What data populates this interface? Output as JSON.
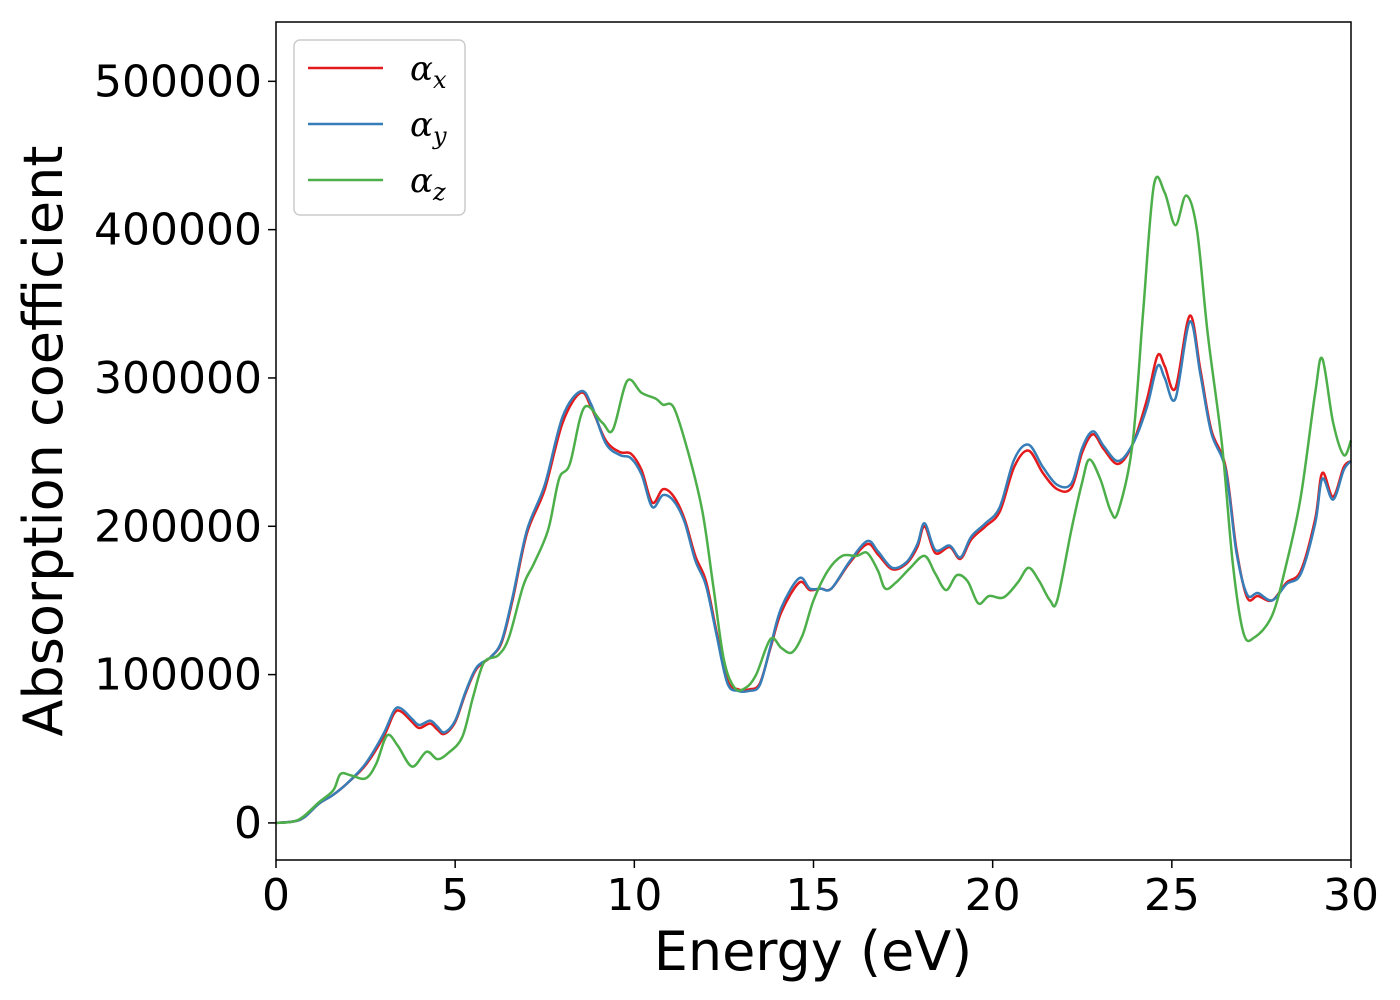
{
  "chart_data": {
    "type": "line",
    "xlabel": "Energy (eV)",
    "ylabel": "Absorption coefficient",
    "xlim": [
      0,
      30
    ],
    "ylim": [
      -25000,
      540000
    ],
    "xticks": [
      "0",
      "5",
      "10",
      "15",
      "20",
      "25",
      "30"
    ],
    "yticks": [
      "0",
      "100000",
      "200000",
      "300000",
      "400000",
      "500000"
    ],
    "grid": false,
    "legend_position": "top-left",
    "series": [
      {
        "name": "αx",
        "color": "#e41a1c",
        "points": [
          [
            0,
            0
          ],
          [
            0.5,
            1000
          ],
          [
            0.8,
            4000
          ],
          [
            1.2,
            13000
          ],
          [
            1.6,
            19000
          ],
          [
            2,
            27000
          ],
          [
            2.5,
            39000
          ],
          [
            3,
            58000
          ],
          [
            3.3,
            74000
          ],
          [
            3.5,
            75000
          ],
          [
            3.8,
            68000
          ],
          [
            4,
            64000
          ],
          [
            4.3,
            67000
          ],
          [
            4.5,
            63000
          ],
          [
            4.7,
            60000
          ],
          [
            5,
            68000
          ],
          [
            5.3,
            88000
          ],
          [
            5.6,
            104000
          ],
          [
            6,
            112000
          ],
          [
            6.3,
            122000
          ],
          [
            6.6,
            150000
          ],
          [
            7,
            195000
          ],
          [
            7.5,
            225000
          ],
          [
            8,
            270000
          ],
          [
            8.5,
            290000
          ],
          [
            8.8,
            280000
          ],
          [
            9.2,
            258000
          ],
          [
            9.6,
            250000
          ],
          [
            9.9,
            249000
          ],
          [
            10.2,
            238000
          ],
          [
            10.5,
            216000
          ],
          [
            10.8,
            225000
          ],
          [
            11.1,
            220000
          ],
          [
            11.4,
            205000
          ],
          [
            11.7,
            180000
          ],
          [
            12,
            163000
          ],
          [
            12.3,
            128000
          ],
          [
            12.6,
            96000
          ],
          [
            12.9,
            90000
          ],
          [
            13.2,
            90000
          ],
          [
            13.5,
            94000
          ],
          [
            13.8,
            118000
          ],
          [
            14.1,
            142000
          ],
          [
            14.6,
            162000
          ],
          [
            14.9,
            157000
          ],
          [
            15.2,
            158000
          ],
          [
            15.5,
            158000
          ],
          [
            16,
            175000
          ],
          [
            16.5,
            188000
          ],
          [
            16.8,
            181000
          ],
          [
            17.2,
            171000
          ],
          [
            17.6,
            175000
          ],
          [
            17.9,
            186000
          ],
          [
            18.1,
            200000
          ],
          [
            18.4,
            182000
          ],
          [
            18.8,
            186000
          ],
          [
            19.1,
            178000
          ],
          [
            19.4,
            191000
          ],
          [
            19.8,
            200000
          ],
          [
            20.2,
            210000
          ],
          [
            20.6,
            240000
          ],
          [
            21,
            251000
          ],
          [
            21.4,
            236000
          ],
          [
            21.8,
            225000
          ],
          [
            22.2,
            226000
          ],
          [
            22.5,
            250000
          ],
          [
            22.8,
            262000
          ],
          [
            23.1,
            252000
          ],
          [
            23.5,
            242000
          ],
          [
            23.9,
            255000
          ],
          [
            24.3,
            285000
          ],
          [
            24.6,
            315000
          ],
          [
            24.8,
            308000
          ],
          [
            25.1,
            293000
          ],
          [
            25.5,
            342000
          ],
          [
            25.8,
            305000
          ],
          [
            26.1,
            265000
          ],
          [
            26.5,
            240000
          ],
          [
            26.8,
            185000
          ],
          [
            27.1,
            152000
          ],
          [
            27.4,
            153000
          ],
          [
            27.8,
            150000
          ],
          [
            28.2,
            162000
          ],
          [
            28.6,
            170000
          ],
          [
            29,
            205000
          ],
          [
            29.2,
            236000
          ],
          [
            29.5,
            220000
          ],
          [
            29.8,
            240000
          ],
          [
            30,
            244000
          ]
        ]
      },
      {
        "name": "αy",
        "color": "#377eb8",
        "points": [
          [
            0,
            0
          ],
          [
            0.5,
            1000
          ],
          [
            0.8,
            4000
          ],
          [
            1.2,
            13000
          ],
          [
            1.6,
            19000
          ],
          [
            2,
            27000
          ],
          [
            2.5,
            40000
          ],
          [
            3,
            60000
          ],
          [
            3.3,
            76000
          ],
          [
            3.5,
            77000
          ],
          [
            3.8,
            70000
          ],
          [
            4,
            66000
          ],
          [
            4.3,
            69000
          ],
          [
            4.5,
            65000
          ],
          [
            4.7,
            61000
          ],
          [
            5,
            69000
          ],
          [
            5.3,
            89000
          ],
          [
            5.6,
            105000
          ],
          [
            6,
            112000
          ],
          [
            6.3,
            123000
          ],
          [
            6.6,
            152000
          ],
          [
            7,
            197000
          ],
          [
            7.5,
            228000
          ],
          [
            8,
            274000
          ],
          [
            8.5,
            291000
          ],
          [
            8.8,
            282000
          ],
          [
            9.2,
            256000
          ],
          [
            9.6,
            248000
          ],
          [
            9.9,
            246000
          ],
          [
            10.2,
            235000
          ],
          [
            10.5,
            213000
          ],
          [
            10.8,
            221000
          ],
          [
            11.1,
            217000
          ],
          [
            11.4,
            203000
          ],
          [
            11.7,
            177000
          ],
          [
            12,
            160000
          ],
          [
            12.3,
            126000
          ],
          [
            12.6,
            94000
          ],
          [
            12.9,
            89000
          ],
          [
            13.2,
            89000
          ],
          [
            13.5,
            93000
          ],
          [
            13.8,
            119000
          ],
          [
            14.1,
            145000
          ],
          [
            14.6,
            165000
          ],
          [
            14.9,
            158000
          ],
          [
            15.2,
            158000
          ],
          [
            15.5,
            158000
          ],
          [
            16,
            176000
          ],
          [
            16.5,
            190000
          ],
          [
            16.8,
            183000
          ],
          [
            17.2,
            172000
          ],
          [
            17.6,
            176000
          ],
          [
            17.9,
            188000
          ],
          [
            18.1,
            202000
          ],
          [
            18.4,
            184000
          ],
          [
            18.8,
            187000
          ],
          [
            19.1,
            179000
          ],
          [
            19.4,
            193000
          ],
          [
            19.8,
            202000
          ],
          [
            20.2,
            213000
          ],
          [
            20.6,
            245000
          ],
          [
            21,
            255000
          ],
          [
            21.4,
            240000
          ],
          [
            21.8,
            228000
          ],
          [
            22.2,
            229000
          ],
          [
            22.5,
            253000
          ],
          [
            22.8,
            264000
          ],
          [
            23.1,
            254000
          ],
          [
            23.5,
            244000
          ],
          [
            23.9,
            255000
          ],
          [
            24.3,
            280000
          ],
          [
            24.6,
            308000
          ],
          [
            24.8,
            300000
          ],
          [
            25.1,
            286000
          ],
          [
            25.5,
            338000
          ],
          [
            25.8,
            302000
          ],
          [
            26.1,
            263000
          ],
          [
            26.5,
            238000
          ],
          [
            26.8,
            183000
          ],
          [
            27.1,
            154000
          ],
          [
            27.4,
            155000
          ],
          [
            27.8,
            150000
          ],
          [
            28.2,
            161000
          ],
          [
            28.6,
            168000
          ],
          [
            29,
            202000
          ],
          [
            29.2,
            232000
          ],
          [
            29.5,
            218000
          ],
          [
            29.8,
            238000
          ],
          [
            30,
            244000
          ]
        ]
      },
      {
        "name": "αz",
        "color": "#4daf4a",
        "points": [
          [
            0,
            0
          ],
          [
            0.5,
            1000
          ],
          [
            0.8,
            5000
          ],
          [
            1.2,
            14000
          ],
          [
            1.6,
            22000
          ],
          [
            1.8,
            33000
          ],
          [
            2.1,
            32000
          ],
          [
            2.5,
            30000
          ],
          [
            2.8,
            40000
          ],
          [
            3.1,
            59000
          ],
          [
            3.4,
            52000
          ],
          [
            3.8,
            38000
          ],
          [
            4.2,
            48000
          ],
          [
            4.5,
            43000
          ],
          [
            4.8,
            47000
          ],
          [
            5.2,
            58000
          ],
          [
            5.5,
            85000
          ],
          [
            5.8,
            108000
          ],
          [
            6.2,
            113000
          ],
          [
            6.5,
            125000
          ],
          [
            6.9,
            160000
          ],
          [
            7.2,
            175000
          ],
          [
            7.6,
            198000
          ],
          [
            7.9,
            232000
          ],
          [
            8.2,
            242000
          ],
          [
            8.6,
            280000
          ],
          [
            9.1,
            270000
          ],
          [
            9.4,
            265000
          ],
          [
            9.8,
            298000
          ],
          [
            10.2,
            290000
          ],
          [
            10.6,
            286000
          ],
          [
            10.8,
            282000
          ],
          [
            11.1,
            280000
          ],
          [
            11.5,
            250000
          ],
          [
            11.9,
            210000
          ],
          [
            12.2,
            160000
          ],
          [
            12.5,
            110000
          ],
          [
            12.8,
            91000
          ],
          [
            13.1,
            91000
          ],
          [
            13.4,
            100000
          ],
          [
            13.8,
            124000
          ],
          [
            14.1,
            118000
          ],
          [
            14.4,
            115000
          ],
          [
            14.7,
            127000
          ],
          [
            15,
            150000
          ],
          [
            15.4,
            170000
          ],
          [
            15.8,
            180000
          ],
          [
            16.2,
            180000
          ],
          [
            16.5,
            182000
          ],
          [
            16.8,
            170000
          ],
          [
            17,
            158000
          ],
          [
            17.3,
            162000
          ],
          [
            17.7,
            172000
          ],
          [
            18.1,
            180000
          ],
          [
            18.4,
            168000
          ],
          [
            18.7,
            157000
          ],
          [
            19,
            167000
          ],
          [
            19.3,
            163000
          ],
          [
            19.6,
            148000
          ],
          [
            19.9,
            153000
          ],
          [
            20.3,
            152000
          ],
          [
            20.7,
            162000
          ],
          [
            21,
            172000
          ],
          [
            21.3,
            163000
          ],
          [
            21.6,
            150000
          ],
          [
            21.8,
            150000
          ],
          [
            22.2,
            198000
          ],
          [
            22.5,
            230000
          ],
          [
            22.7,
            245000
          ],
          [
            23,
            232000
          ],
          [
            23.3,
            210000
          ],
          [
            23.5,
            210000
          ],
          [
            23.9,
            255000
          ],
          [
            24.2,
            345000
          ],
          [
            24.5,
            430000
          ],
          [
            24.8,
            425000
          ],
          [
            25.1,
            403000
          ],
          [
            25.4,
            423000
          ],
          [
            25.7,
            400000
          ],
          [
            26,
            330000
          ],
          [
            26.4,
            255000
          ],
          [
            26.7,
            175000
          ],
          [
            27,
            128000
          ],
          [
            27.3,
            125000
          ],
          [
            27.8,
            140000
          ],
          [
            28.2,
            175000
          ],
          [
            28.6,
            220000
          ],
          [
            29,
            290000
          ],
          [
            29.2,
            313000
          ],
          [
            29.5,
            270000
          ],
          [
            29.8,
            248000
          ],
          [
            30,
            258000
          ]
        ]
      }
    ]
  }
}
